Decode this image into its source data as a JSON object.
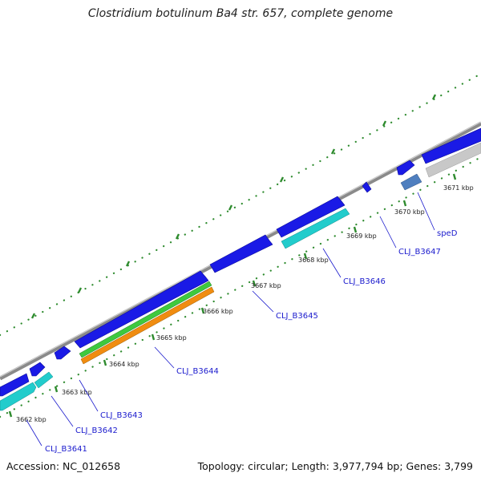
{
  "header": {
    "title": "Clostridium botulinum Ba4 str. 657, complete genome"
  },
  "footer": {
    "accession": "Accession: NC_012658",
    "summary": "Topology: circular; Length: 3,977,794 bp; Genes: 3,799"
  },
  "colors": {
    "backbone": "#8a8a8a",
    "cds_forward": "#1a1ae6",
    "cds_reverse": "#22cccc",
    "rna_green": "#3ec93e",
    "rna_orange": "#f08c10",
    "selected_gene": "#4f7fbf",
    "grey_feature": "#c8c8c8",
    "tick_major": "#2e8b2e",
    "label_link": "#1a1acd"
  },
  "tick_labels": [
    "3662 kbp",
    "3663 kbp",
    "3664 kbp",
    "3665 kbp",
    "3666 kbp",
    "3667 kbp",
    "3668 kbp",
    "3669 kbp",
    "3670 kbp",
    "3671 kbp"
  ],
  "gene_labels": [
    "CLJ_B3641",
    "CLJ_B3642",
    "CLJ_B3643",
    "CLJ_B3644",
    "CLJ_B3645",
    "CLJ_B3646",
    "CLJ_B3647",
    "speD"
  ]
}
